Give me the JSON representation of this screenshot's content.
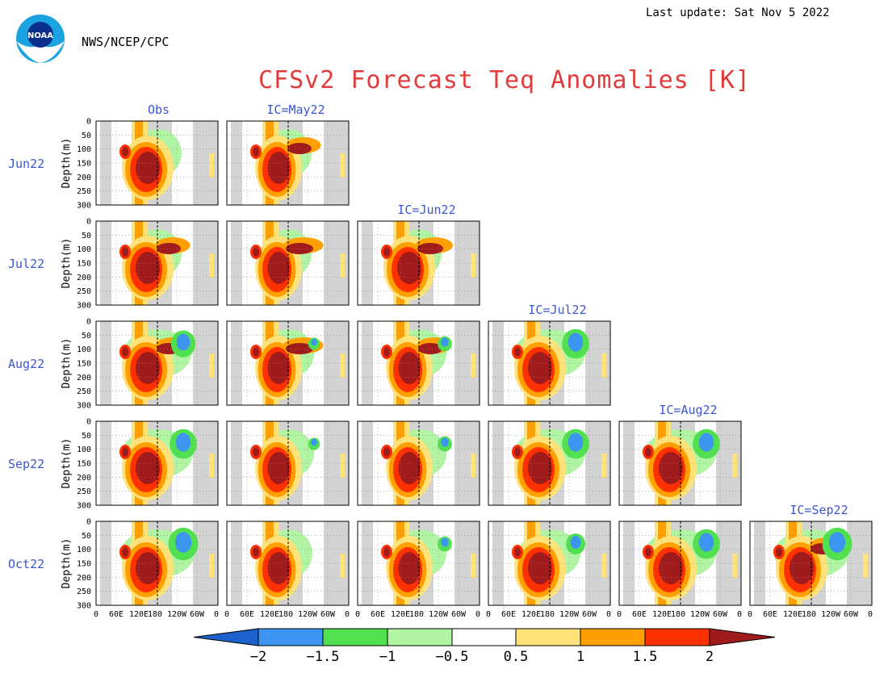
{
  "header": {
    "last_update": "Last update: Sat Nov 5 2022",
    "agency": "NWS/NCEP/CPC",
    "title": "CFSv2 Forecast Teq Anomalies [K]",
    "logo_text": "NOAA"
  },
  "colors": {
    "title": "#e23b3b",
    "label_blue": "#3a56d4",
    "land_mask": "#d3d3d3"
  },
  "rows": [
    "Jun22",
    "Jul22",
    "Aug22",
    "Sep22",
    "Oct22"
  ],
  "columns": [
    "Obs",
    "IC=May22",
    "IC=Jun22",
    "IC=Jul22",
    "IC=Aug22",
    "IC=Sep22"
  ],
  "chart_data": {
    "type": "heatmap",
    "title": "CFSv2 Forecast Teq Anomalies [K]",
    "ylabel": "Depth(m)",
    "yticks": [
      "0",
      "50",
      "100",
      "150",
      "200",
      "250",
      "300"
    ],
    "ylim": [
      300,
      0
    ],
    "xticks": [
      "0",
      "60E",
      "120E",
      "180",
      "120W",
      "60W",
      "0"
    ],
    "units": "K",
    "colorbar": {
      "levels": [
        "−2",
        "−1.5",
        "−1",
        "−0.5",
        "0.5",
        "1",
        "1.5",
        "2"
      ],
      "colors": [
        "#1c60cc",
        "#3c95f0",
        "#50e050",
        "#b0f4a4",
        "#ffffff",
        "#ffe37a",
        "#ffa000",
        "#ff3000",
        "#a01c1c"
      ]
    },
    "panels": [
      {
        "row": "Jun22",
        "col": "Obs",
        "west": 1.0,
        "east": 0.0,
        "cold": 0.1
      },
      {
        "row": "Jun22",
        "col": "IC=May22",
        "west": 0.9,
        "east": 0.1,
        "cold": 0.05
      },
      {
        "row": "Jul22",
        "col": "Obs",
        "west": 1.0,
        "east": 0.1,
        "cold": 0.1
      },
      {
        "row": "Jul22",
        "col": "IC=May22",
        "west": 0.9,
        "east": 0.3,
        "cold": 0.05
      },
      {
        "row": "Jul22",
        "col": "IC=Jun22",
        "west": 1.0,
        "east": 0.2,
        "cold": 0.0
      },
      {
        "row": "Aug22",
        "col": "Obs",
        "west": 1.0,
        "east": 0.1,
        "cold": 0.7
      },
      {
        "row": "Aug22",
        "col": "IC=May22",
        "west": 0.9,
        "east": 0.3,
        "cold": 0.2
      },
      {
        "row": "Aug22",
        "col": "IC=Jun22",
        "west": 0.9,
        "east": 0.1,
        "cold": 0.3
      },
      {
        "row": "Aug22",
        "col": "IC=Jul22",
        "west": 1.0,
        "east": 0.0,
        "cold": 0.8
      },
      {
        "row": "Sep22",
        "col": "Obs",
        "west": 1.0,
        "east": 0.0,
        "cold": 0.8
      },
      {
        "row": "Sep22",
        "col": "IC=May22",
        "west": 0.9,
        "east": 0.0,
        "cold": 0.2
      },
      {
        "row": "Sep22",
        "col": "IC=Jun22",
        "west": 0.9,
        "east": 0.0,
        "cold": 0.3
      },
      {
        "row": "Sep22",
        "col": "IC=Jul22",
        "west": 1.0,
        "east": 0.0,
        "cold": 0.8
      },
      {
        "row": "Sep22",
        "col": "IC=Aug22",
        "west": 1.0,
        "east": 0.0,
        "cold": 0.8
      },
      {
        "row": "Oct22",
        "col": "Obs",
        "west": 1.0,
        "east": 0.0,
        "cold": 0.9
      },
      {
        "row": "Oct22",
        "col": "IC=May22",
        "west": 0.9,
        "east": 0.0,
        "cold": 0.1
      },
      {
        "row": "Oct22",
        "col": "IC=Jun22",
        "west": 0.9,
        "east": 0.0,
        "cold": 0.3
      },
      {
        "row": "Oct22",
        "col": "IC=Jul22",
        "west": 1.0,
        "east": 0.0,
        "cold": 0.5
      },
      {
        "row": "Oct22",
        "col": "IC=Aug22",
        "west": 1.0,
        "east": 0.0,
        "cold": 0.8
      },
      {
        "row": "Oct22",
        "col": "IC=Sep22",
        "west": 1.0,
        "east": 0.1,
        "cold": 0.9
      }
    ]
  }
}
